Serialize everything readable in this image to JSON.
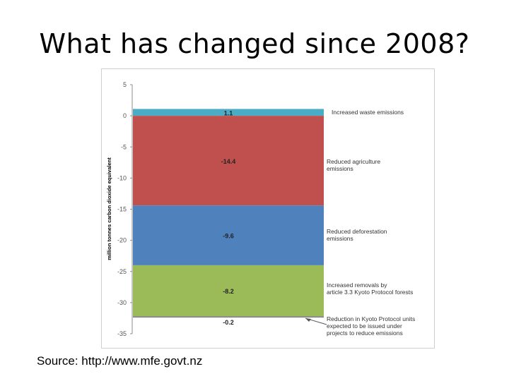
{
  "slide": {
    "title": "What has changed since 2008?",
    "source": "Source: http://www.mfe.govt.nz"
  },
  "chart_data": {
    "type": "bar",
    "stacked": true,
    "ylabel": "million tonnes carbon dioxide equivalent",
    "ylim": [
      -35,
      5
    ],
    "y_tick_labels": [
      "5",
      "0",
      "-5",
      "-10",
      "-15",
      "-20",
      "-25",
      "-30",
      "-35"
    ],
    "y_tick_values": [
      5,
      0,
      -5,
      -10,
      -15,
      -20,
      -25,
      -30,
      -35
    ],
    "grid": false,
    "segments": [
      {
        "value": 1.1,
        "label": "1.1",
        "description": "Increased waste emissions",
        "color": "#4bacc6"
      },
      {
        "value": -14.4,
        "label": "-14.4",
        "description": "Reduced agriculture emissions",
        "color": "#c0504d"
      },
      {
        "value": -9.6,
        "label": "-9.6",
        "description": "Reduced deforestation emissions",
        "color": "#4f81bd"
      },
      {
        "value": -8.2,
        "label": "-8.2",
        "description": "Increased removals by article 3.3 Kyoto Protocol forests",
        "color": "#9bbb59"
      },
      {
        "value": -0.2,
        "label": "-0.2",
        "description": "Reduction in Kyoto Protocol units expected to be issued under projects to reduce emissions",
        "color": "#7f7f7f"
      }
    ]
  }
}
